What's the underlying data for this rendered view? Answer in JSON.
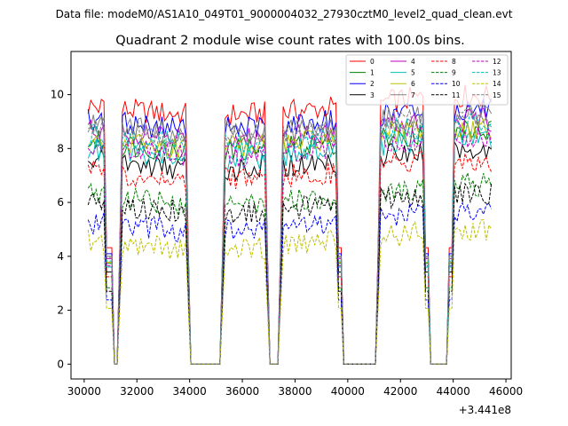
{
  "chart_data": {
    "type": "line",
    "suptitle": "Data file: modeM0/AS1A10_049T01_9000004032_27930cztM0_level2_quad_clean.evt",
    "title": "Quadrant 2 module wise count rates with 100.0s bins.",
    "xlabel": "",
    "ylabel": "",
    "x_offset_label": "+3.441e8",
    "xlim": [
      29500,
      46200
    ],
    "ylim": [
      -0.55,
      11.6
    ],
    "xticks": [
      30000,
      32000,
      34000,
      36000,
      38000,
      40000,
      42000,
      44000,
      46000
    ],
    "yticks": [
      0,
      2,
      4,
      6,
      8,
      10
    ],
    "legend_position": "top-right",
    "legend_ncol": 4,
    "segments": [
      [
        30150,
        30800
      ],
      [
        31450,
        33850
      ],
      [
        35350,
        36850
      ],
      [
        37550,
        39600
      ],
      [
        41250,
        42850
      ],
      [
        44000,
        45450
      ]
    ],
    "gaps": [
      [
        31100,
        31300
      ],
      [
        34050,
        35150
      ],
      [
        37050,
        37400
      ],
      [
        39850,
        41100
      ],
      [
        43150,
        43800
      ]
    ],
    "series": [
      {
        "name": "0",
        "color": "#ff0000",
        "dash": "solid",
        "level": 9.6
      },
      {
        "name": "1",
        "color": "#008000",
        "dash": "solid",
        "level": 8.3
      },
      {
        "name": "2",
        "color": "#0000ff",
        "dash": "solid",
        "level": 9.1
      },
      {
        "name": "3",
        "color": "#000000",
        "dash": "solid",
        "level": 7.6
      },
      {
        "name": "4",
        "color": "#bf00bf",
        "dash": "solid",
        "level": 8.7
      },
      {
        "name": "5",
        "color": "#00bfbf",
        "dash": "solid",
        "level": 8.0
      },
      {
        "name": "6",
        "color": "#bfbf00",
        "dash": "solid",
        "level": 8.4
      },
      {
        "name": "7",
        "color": "#808080",
        "dash": "solid",
        "level": 8.9
      },
      {
        "name": "8",
        "color": "#ff0000",
        "dash": "dashed",
        "level": 7.2
      },
      {
        "name": "9",
        "color": "#008000",
        "dash": "dashed",
        "level": 6.3
      },
      {
        "name": "10",
        "color": "#0000ff",
        "dash": "dashed",
        "level": 5.3
      },
      {
        "name": "11",
        "color": "#000000",
        "dash": "dashed",
        "level": 6.0
      },
      {
        "name": "12",
        "color": "#bf00bf",
        "dash": "dashed",
        "level": 8.1
      },
      {
        "name": "13",
        "color": "#00bfbf",
        "dash": "dashed",
        "level": 8.5
      },
      {
        "name": "14",
        "color": "#bfbf00",
        "dash": "dashed",
        "level": 4.6
      },
      {
        "name": "15",
        "color": "#808080",
        "dash": "dashed",
        "level": 8.8
      }
    ]
  }
}
